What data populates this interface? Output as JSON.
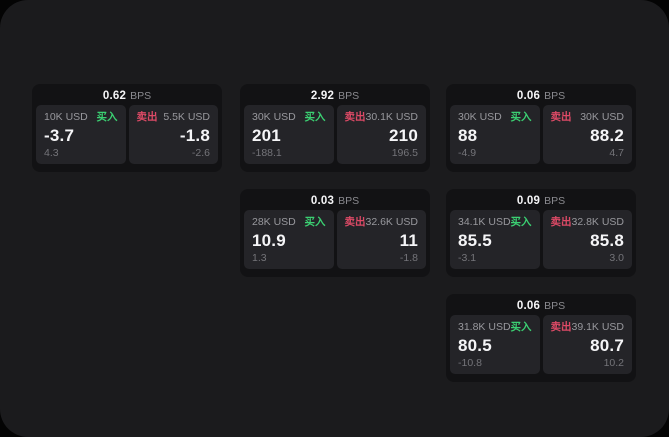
{
  "labels": {
    "buy": "买入",
    "sell": "卖出",
    "bps_unit": "BPS"
  },
  "colors": {
    "panel_bg": "#1b1b1d",
    "card_bg": "#121214",
    "tile_bg": "#242428",
    "buy_green": "#3bd072",
    "sell_red": "#dd4a66",
    "value_white": "#f5f5f7",
    "label_gray": "#98989d"
  },
  "cards": [
    {
      "row": 1,
      "col": 1,
      "bps": "0.62",
      "buy": {
        "amount": "10K USD",
        "value": "-3.7",
        "delta": "4.3"
      },
      "sell": {
        "amount": "5.5K USD",
        "value": "-1.8",
        "delta": "-2.6"
      }
    },
    {
      "row": 1,
      "col": 2,
      "bps": "2.92",
      "buy": {
        "amount": "30K USD",
        "value": "201",
        "delta": "-188.1"
      },
      "sell": {
        "amount": "30.1K USD",
        "value": "210",
        "delta": "196.5"
      }
    },
    {
      "row": 1,
      "col": 3,
      "bps": "0.06",
      "buy": {
        "amount": "30K USD",
        "value": "88",
        "delta": "-4.9"
      },
      "sell": {
        "amount": "30K USD",
        "value": "88.2",
        "delta": "4.7"
      }
    },
    {
      "row": 2,
      "col": 2,
      "bps": "0.03",
      "buy": {
        "amount": "28K USD",
        "value": "10.9",
        "delta": "1.3"
      },
      "sell": {
        "amount": "32.6K USD",
        "value": "11",
        "delta": "-1.8"
      }
    },
    {
      "row": 2,
      "col": 3,
      "bps": "0.09",
      "buy": {
        "amount": "34.1K USD",
        "value": "85.5",
        "delta": "-3.1"
      },
      "sell": {
        "amount": "32.8K USD",
        "value": "85.8",
        "delta": "3.0"
      }
    },
    {
      "row": 3,
      "col": 3,
      "bps": "0.06",
      "buy": {
        "amount": "31.8K USD",
        "value": "80.5",
        "delta": "-10.8"
      },
      "sell": {
        "amount": "39.1K USD",
        "value": "80.7",
        "delta": "10.2"
      }
    }
  ]
}
